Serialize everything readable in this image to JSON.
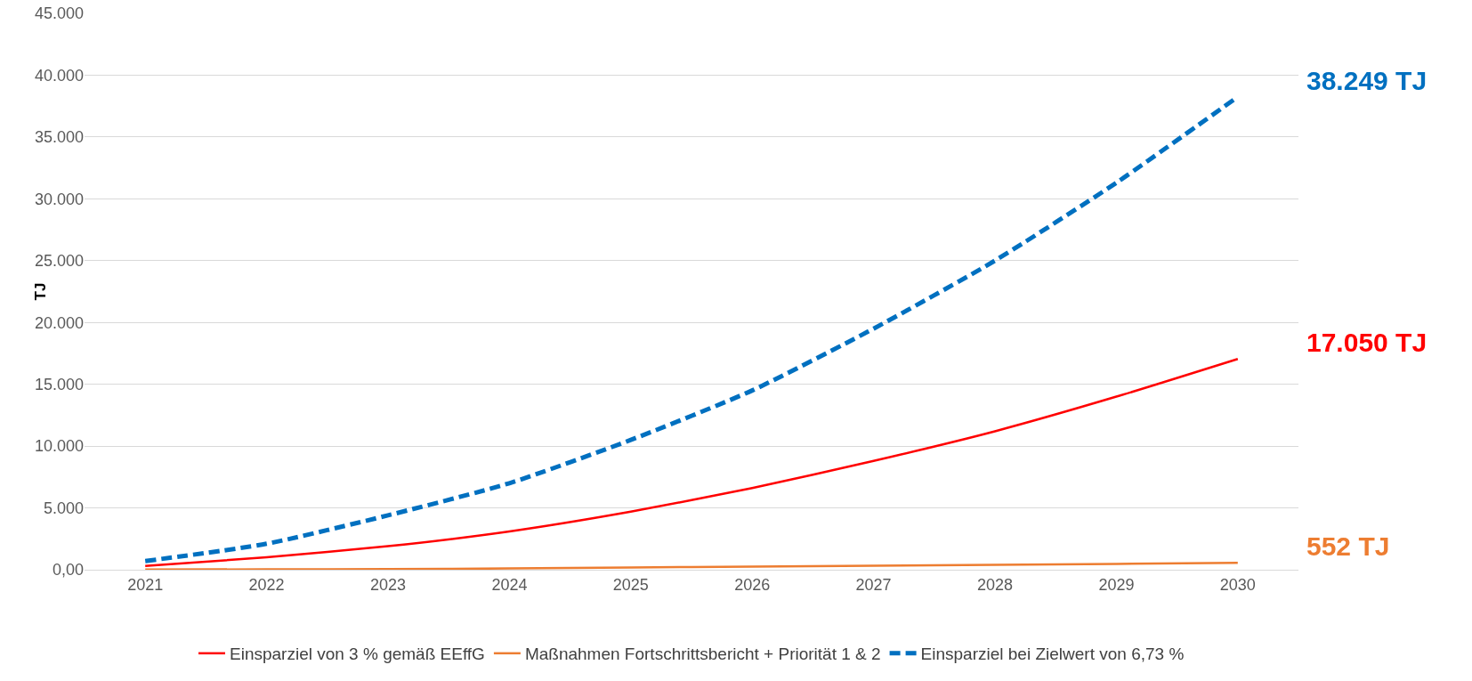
{
  "chart_data": {
    "type": "line",
    "ylabel": "TJ",
    "categories": [
      "2021",
      "2022",
      "2023",
      "2024",
      "2025",
      "2026",
      "2027",
      "2028",
      "2029",
      "2030"
    ],
    "series": [
      {
        "name": "Einsparziel von 3 % gemäß EEffG",
        "color": "#ff0000",
        "line_style": "solid",
        "values": [
          300,
          1000,
          1900,
          3100,
          4700,
          6600,
          8800,
          11200,
          14000,
          17050
        ]
      },
      {
        "name": "Maßnahmen Fortschrittsbericht + Priorität 1 & 2",
        "color": "#ed7d31",
        "line_style": "solid",
        "values": [
          20,
          30,
          50,
          100,
          180,
          260,
          320,
          400,
          470,
          552
        ]
      },
      {
        "name": "Einsparziel bei Zielwert von 6,73 %",
        "color": "#0070c0",
        "line_style": "dashed",
        "values": [
          700,
          2100,
          4400,
          7000,
          10500,
          14500,
          19500,
          25000,
          31300,
          38249
        ]
      }
    ],
    "ylim": [
      0,
      45000
    ],
    "yticks": [
      {
        "value": 0,
        "label": "0,00"
      },
      {
        "value": 5000,
        "label": "5.000"
      },
      {
        "value": 10000,
        "label": "10.000"
      },
      {
        "value": 15000,
        "label": "15.000"
      },
      {
        "value": 20000,
        "label": "20.000"
      },
      {
        "value": 25000,
        "label": "25.000"
      },
      {
        "value": 30000,
        "label": "30.000"
      },
      {
        "value": 35000,
        "label": "35.000"
      },
      {
        "value": 40000,
        "label": "40.000"
      },
      {
        "value": 45000,
        "label": "45.000"
      }
    ],
    "grid": "y",
    "legend": "bottom",
    "marker": "none",
    "annotations": [
      {
        "text": "17.050 TJ",
        "x": "2030",
        "y": 17050
      },
      {
        "text": "552 TJ",
        "x": "2030",
        "y": 552
      },
      {
        "text": "38.249 TJ",
        "x": "2030",
        "y": 38249
      }
    ]
  }
}
